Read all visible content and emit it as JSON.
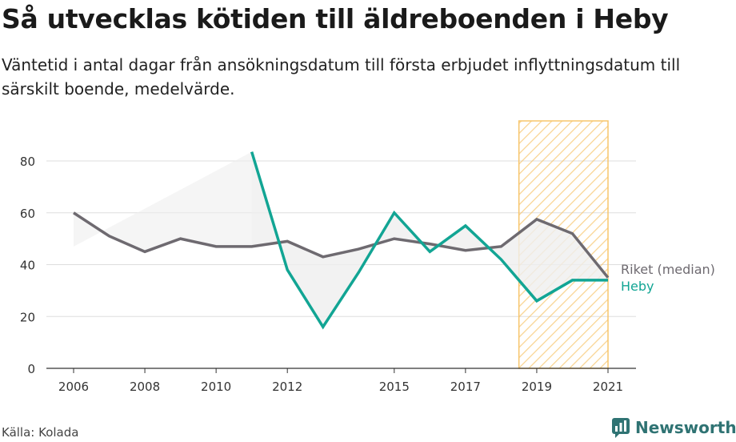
{
  "header": {
    "title": "Så utvecklas kötiden till äldreboenden i Heby",
    "subtitle": "Väntetid i antal dagar från ansökningsdatum till första erbjudet inflyttningsdatum till särskilt boende, medelvärde."
  },
  "footer": {
    "source": "Källa: Kolada",
    "brand": "Newsworthy"
  },
  "colors": {
    "riket": "#6e6a70",
    "heby": "#12a594",
    "highlight": "#f7c56b",
    "shade": "#efefef",
    "grid": "#dddddd"
  },
  "chart_data": {
    "type": "line",
    "title": "Så utvecklas kötiden till äldreboenden i Heby",
    "subtitle": "Väntetid i antal dagar från ansökningsdatum till första erbjudet inflyttningsdatum till särskilt boende, medelvärde.",
    "x_ticks": [
      2006,
      2008,
      2010,
      2012,
      2015,
      2017,
      2019,
      2021
    ],
    "y_ticks": [
      0,
      20,
      40,
      60,
      80
    ],
    "xlim": [
      2006,
      2021
    ],
    "ylim": [
      0,
      80
    ],
    "grid": true,
    "highlight_range": [
      2018.5,
      2021
    ],
    "series": [
      {
        "name": "Riket (median)",
        "color": "#6e6a70",
        "points": [
          [
            2006,
            60
          ],
          [
            2007,
            51
          ],
          [
            2008,
            45
          ],
          [
            2009,
            50
          ],
          [
            2010,
            47
          ],
          [
            2011,
            47
          ],
          [
            2012,
            49
          ],
          [
            2013,
            43
          ],
          [
            2014,
            46
          ],
          [
            2015,
            50
          ],
          [
            2016,
            48
          ],
          [
            2017,
            45.5
          ],
          [
            2018,
            47
          ],
          [
            2019,
            57.5
          ],
          [
            2020,
            52
          ],
          [
            2021,
            35
          ]
        ]
      },
      {
        "name": "Heby",
        "color": "#12a594",
        "points": [
          [
            2011,
            83.5
          ],
          [
            2012,
            38
          ],
          [
            2013,
            16
          ],
          [
            2014,
            37
          ],
          [
            2015,
            60
          ],
          [
            2016,
            45
          ],
          [
            2017,
            55
          ],
          [
            2018,
            42
          ],
          [
            2019,
            26
          ],
          [
            2020,
            34
          ],
          [
            2021,
            34
          ]
        ]
      }
    ]
  }
}
